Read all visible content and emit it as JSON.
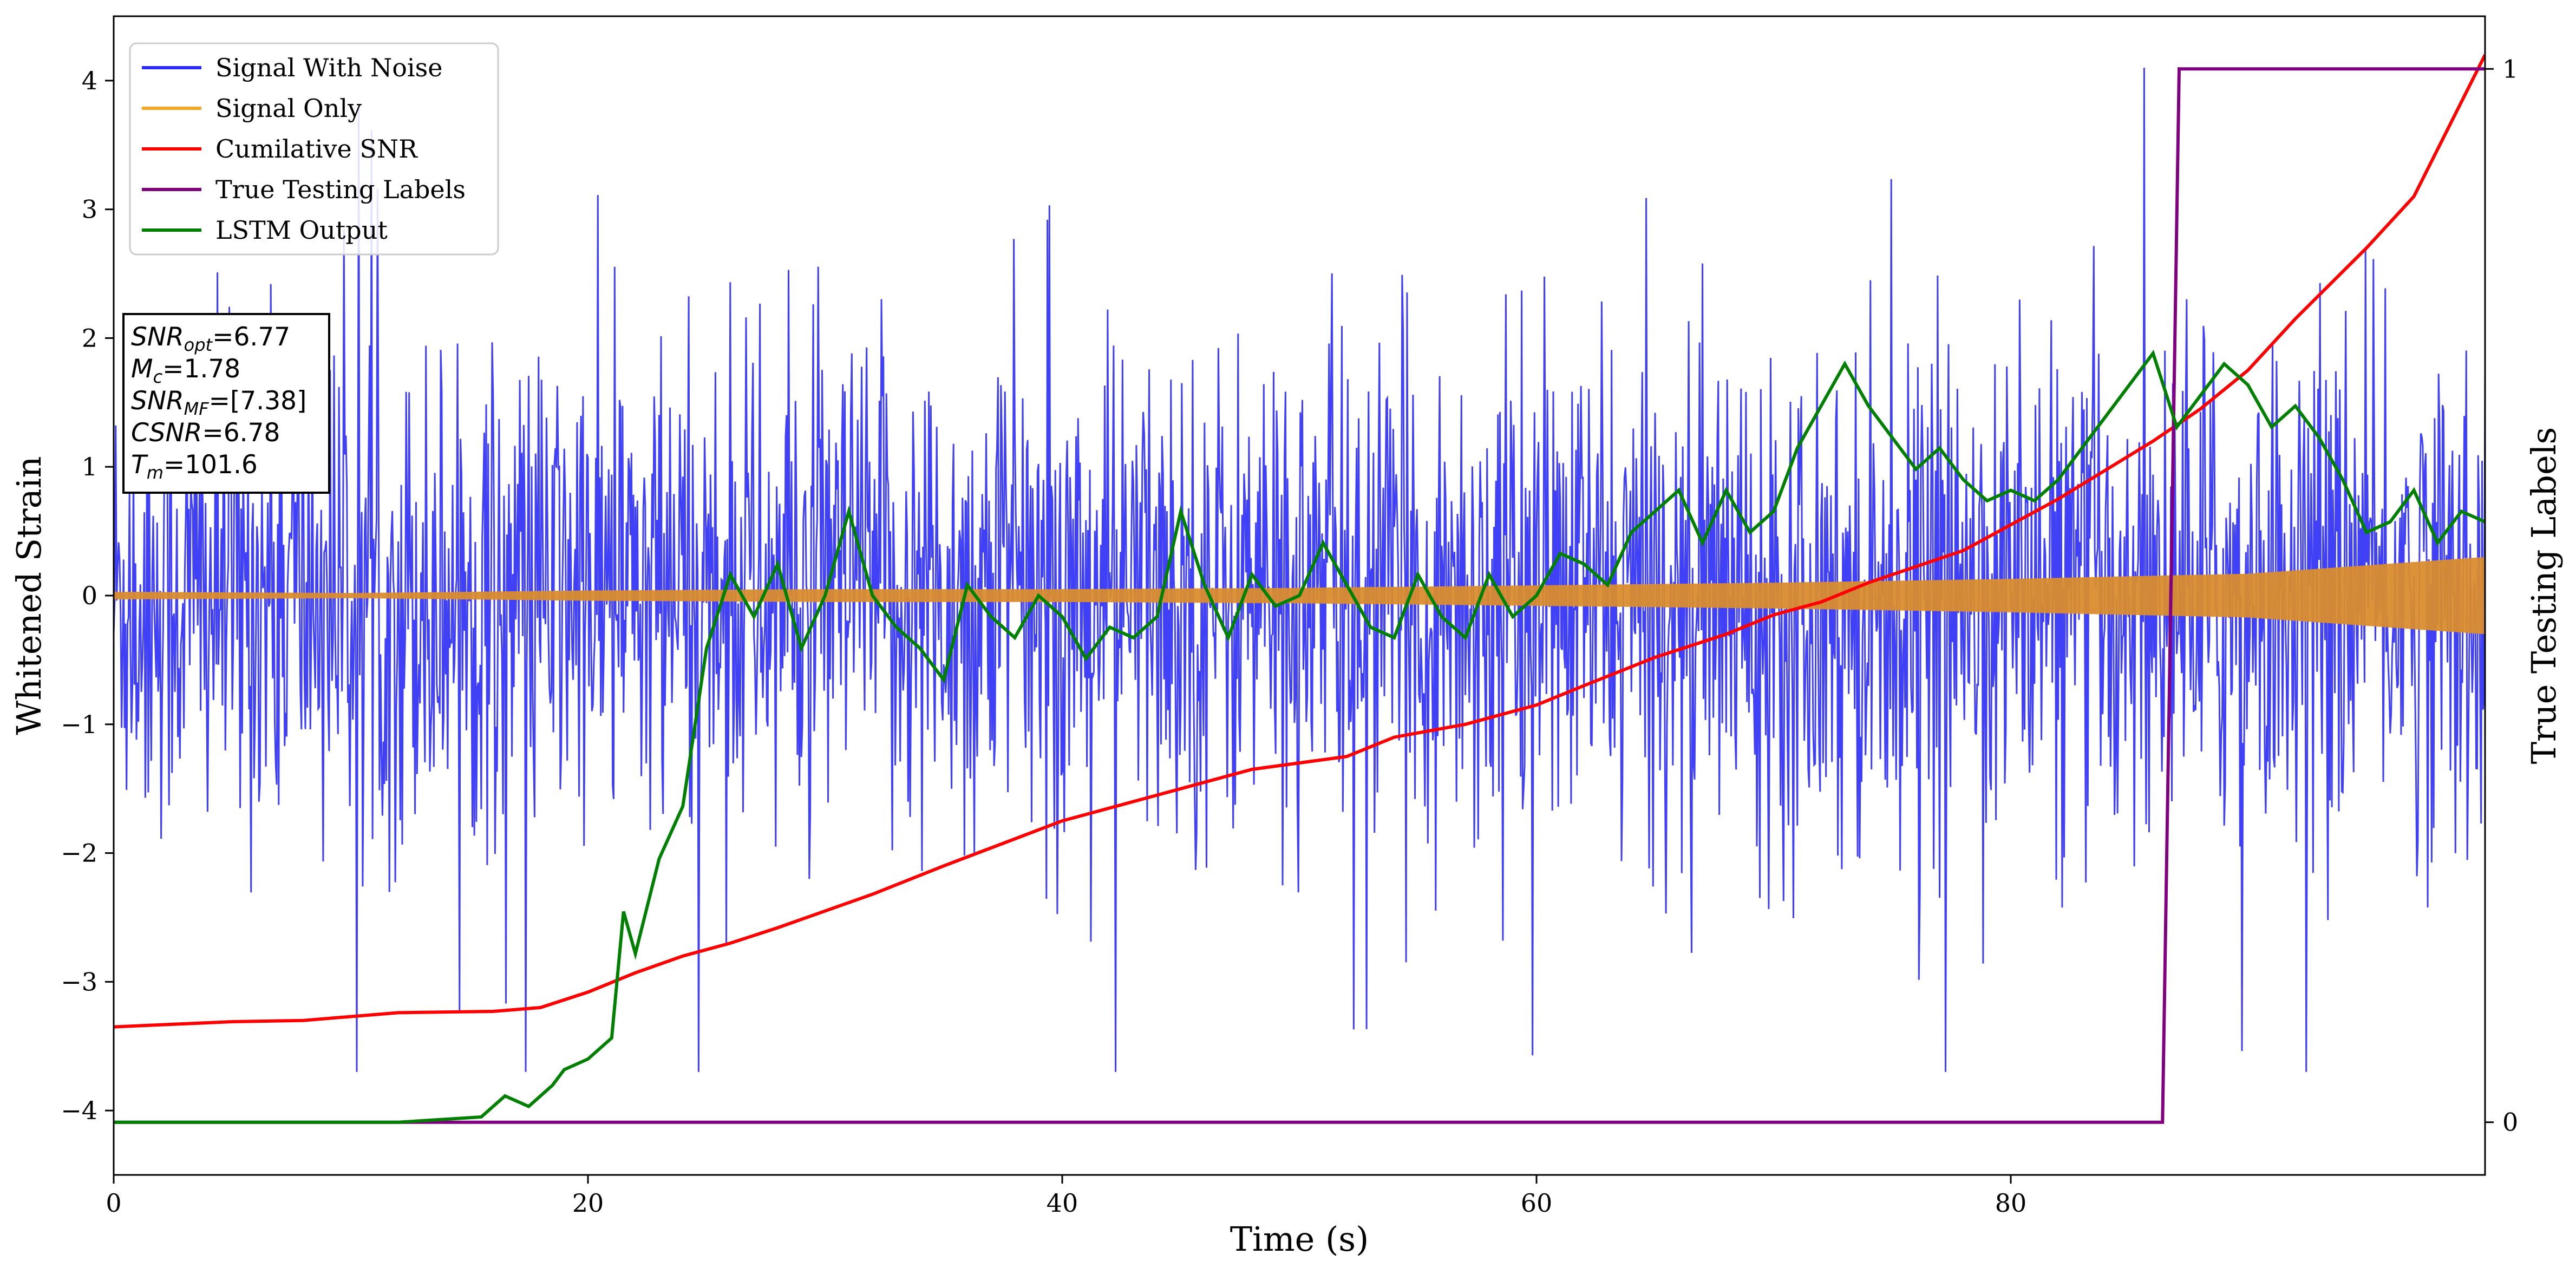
{
  "chart_data": {
    "type": "line",
    "xlabel": "Time (s)",
    "ylabel": "Whitened Strain",
    "y2label": "True Testing Labels",
    "xlim": [
      0,
      100
    ],
    "ylim": [
      -4.5,
      4.5
    ],
    "y2lim": [
      -0.05,
      1.05
    ],
    "x_ticks": [
      0,
      20,
      40,
      60,
      80
    ],
    "y_ticks": [
      -4,
      -3,
      -2,
      -1,
      0,
      1,
      2,
      3,
      4
    ],
    "y2_ticks": [
      0,
      1
    ],
    "x_tick_labels": [
      "0",
      "20",
      "40",
      "60",
      "80"
    ],
    "y_tick_labels": [
      "−4",
      "−3",
      "−2",
      "−1",
      "0",
      "1",
      "2",
      "3",
      "4"
    ],
    "y2_tick_labels": [
      "0",
      "1"
    ],
    "legend_position": "upper-left",
    "grid": false,
    "series": [
      {
        "name": "Signal With Noise",
        "color": "#2b2bf5",
        "axis": "left",
        "description_values": "noise, amplitude about ±1.5 with spikes up to ~4",
        "approx_envelope_max": 4.1,
        "approx_envelope_min": -3.7
      },
      {
        "name": "Signal Only",
        "color": "#f5a623",
        "axis": "left",
        "envelope": {
          "x": [
            0,
            10,
            20,
            30,
            40,
            50,
            60,
            70,
            80,
            90,
            100
          ],
          "amplitude": [
            0.03,
            0.02,
            0.04,
            0.05,
            0.05,
            0.06,
            0.08,
            0.1,
            0.13,
            0.17,
            0.3
          ]
        }
      },
      {
        "name": "Cumilative SNR",
        "color": "#ff0000",
        "axis": "left",
        "x": [
          0,
          5,
          8,
          12,
          16,
          18,
          20,
          22,
          24,
          26,
          28,
          30,
          32,
          35,
          40,
          45,
          48,
          52,
          54,
          57,
          60,
          62,
          65,
          68,
          70,
          72,
          74,
          78,
          82,
          86,
          88,
          90,
          92,
          95,
          97,
          100
        ],
        "y": [
          -3.35,
          -3.31,
          -3.3,
          -3.24,
          -3.23,
          -3.2,
          -3.08,
          -2.93,
          -2.8,
          -2.7,
          -2.58,
          -2.45,
          -2.32,
          -2.1,
          -1.75,
          -1.5,
          -1.35,
          -1.25,
          -1.1,
          -1.0,
          -0.85,
          -0.7,
          -0.48,
          -0.3,
          -0.15,
          -0.05,
          0.1,
          0.35,
          0.75,
          1.2,
          1.45,
          1.75,
          2.15,
          2.7,
          3.1,
          4.2
        ]
      },
      {
        "name": "True Testing Labels",
        "color": "#800080",
        "axis": "right",
        "x": [
          0,
          86.4,
          87.1,
          100
        ],
        "y": [
          0,
          0,
          1,
          1
        ]
      },
      {
        "name": "LSTM Output",
        "color": "#008000",
        "axis": "right",
        "x": [
          0,
          12,
          15.5,
          16.5,
          17.5,
          18.5,
          19,
          20,
          21,
          21.5,
          22,
          23,
          24,
          25,
          26,
          27,
          28,
          29,
          30,
          31,
          32,
          33,
          34,
          35,
          36,
          37,
          38,
          39,
          40,
          41,
          42,
          43,
          44,
          45,
          46,
          47,
          48,
          49,
          50,
          51,
          52,
          53,
          54,
          55,
          56,
          57,
          58,
          59,
          60,
          61,
          62,
          63,
          64,
          65,
          66,
          67,
          68,
          69,
          70,
          71,
          72,
          73,
          74,
          75,
          76,
          77,
          78,
          79,
          80,
          81,
          82,
          83,
          84,
          85,
          86,
          87,
          88,
          89,
          90,
          91,
          92,
          93,
          94,
          95,
          96,
          97,
          98,
          99,
          100
        ],
        "y": [
          0,
          0,
          0.005,
          0.025,
          0.015,
          0.035,
          0.05,
          0.06,
          0.08,
          0.2,
          0.16,
          0.25,
          0.3,
          0.45,
          0.52,
          0.48,
          0.53,
          0.45,
          0.5,
          0.58,
          0.5,
          0.47,
          0.45,
          0.42,
          0.51,
          0.48,
          0.46,
          0.5,
          0.48,
          0.44,
          0.47,
          0.46,
          0.48,
          0.58,
          0.51,
          0.46,
          0.52,
          0.49,
          0.5,
          0.55,
          0.51,
          0.47,
          0.46,
          0.52,
          0.48,
          0.46,
          0.52,
          0.48,
          0.5,
          0.54,
          0.53,
          0.51,
          0.56,
          0.58,
          0.6,
          0.55,
          0.6,
          0.56,
          0.58,
          0.64,
          0.68,
          0.72,
          0.68,
          0.65,
          0.62,
          0.64,
          0.61,
          0.59,
          0.6,
          0.59,
          0.61,
          0.64,
          0.67,
          0.7,
          0.73,
          0.66,
          0.69,
          0.72,
          0.7,
          0.66,
          0.68,
          0.65,
          0.61,
          0.56,
          0.57,
          0.6,
          0.55,
          0.58,
          0.57
        ]
      }
    ],
    "annotation_box": {
      "lines": [
        {
          "base": "SNR",
          "sub": "opt",
          "rest": "=6.77"
        },
        {
          "base": "M",
          "sub": "c",
          "rest": "=1.78"
        },
        {
          "base": "SNR",
          "sub": "MF",
          "rest": "=[7.38]"
        },
        {
          "base": "CSNR",
          "sub": "",
          "rest": "=6.78"
        },
        {
          "base": "T",
          "sub": "m",
          "rest": "=101.6"
        }
      ]
    }
  }
}
